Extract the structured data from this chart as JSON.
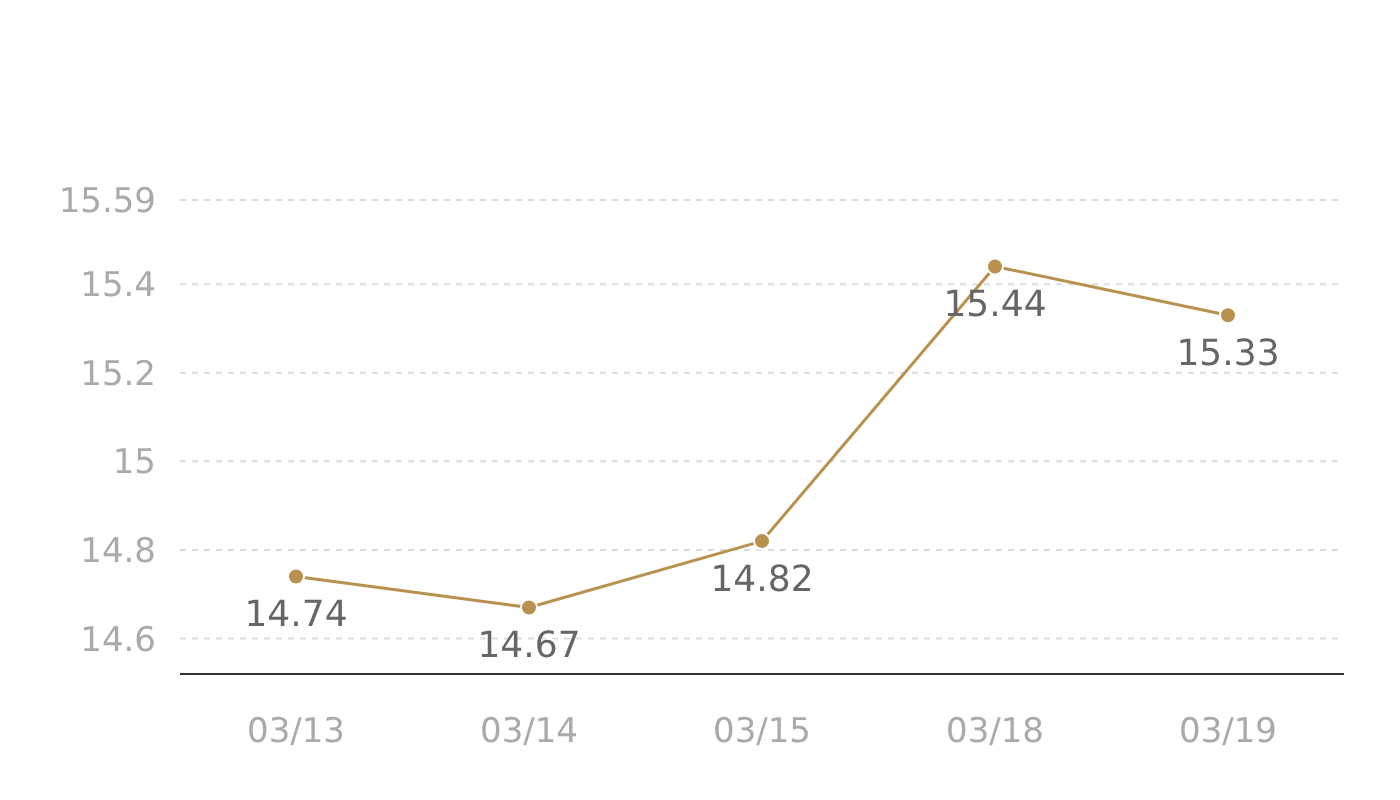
{
  "chart_data": {
    "type": "line",
    "categories": [
      "03/13",
      "03/14",
      "03/15",
      "03/18",
      "03/19"
    ],
    "series": [
      {
        "color": "#b8914e",
        "values": [
          14.74,
          14.67,
          14.82,
          15.44,
          15.33
        ]
      }
    ],
    "ylim": [
      14.52,
      15.59
    ],
    "yticks": [
      14.6,
      14.8,
      15,
      15.2,
      15.4,
      15.59
    ],
    "grid": "y",
    "marker": "circle",
    "line_style": "solid",
    "data_labels": true
  }
}
